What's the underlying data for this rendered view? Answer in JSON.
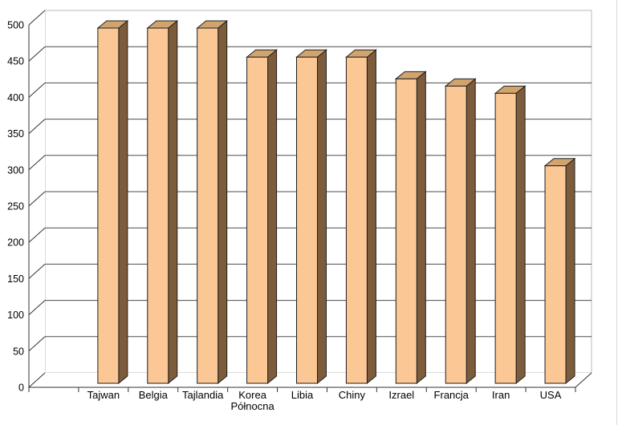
{
  "chart_data": {
    "type": "bar",
    "style": "3d-column",
    "title": "",
    "xlabel": "",
    "ylabel": "",
    "categories": [
      "Tajwan",
      "Belgia",
      "Tajlandia",
      "Korea\nPółnocna",
      "Libia",
      "Chiny",
      "Izrael",
      "Francja",
      "Iran",
      "USA"
    ],
    "values": [
      490,
      490,
      490,
      450,
      450,
      450,
      420,
      410,
      400,
      300
    ],
    "ylim": [
      0,
      500
    ],
    "y_tick_step": 50,
    "y_tick_labels": [
      "0",
      "50",
      "100",
      "150",
      "200",
      "250",
      "300",
      "350",
      "400",
      "450",
      "500"
    ],
    "grid": true,
    "legend": false,
    "colors": {
      "background": "#ffffff",
      "bar_front": "#FAC795",
      "bar_top": "#D1A46E",
      "bar_side": "#7D5C3B",
      "bar_outline": "#1f1f1f",
      "gridline": "#4d4d4d",
      "axis": "#333333",
      "wall_border": "#b8b8b8",
      "screen_edge": "#d9d9d9",
      "label_text": "#000000"
    }
  }
}
